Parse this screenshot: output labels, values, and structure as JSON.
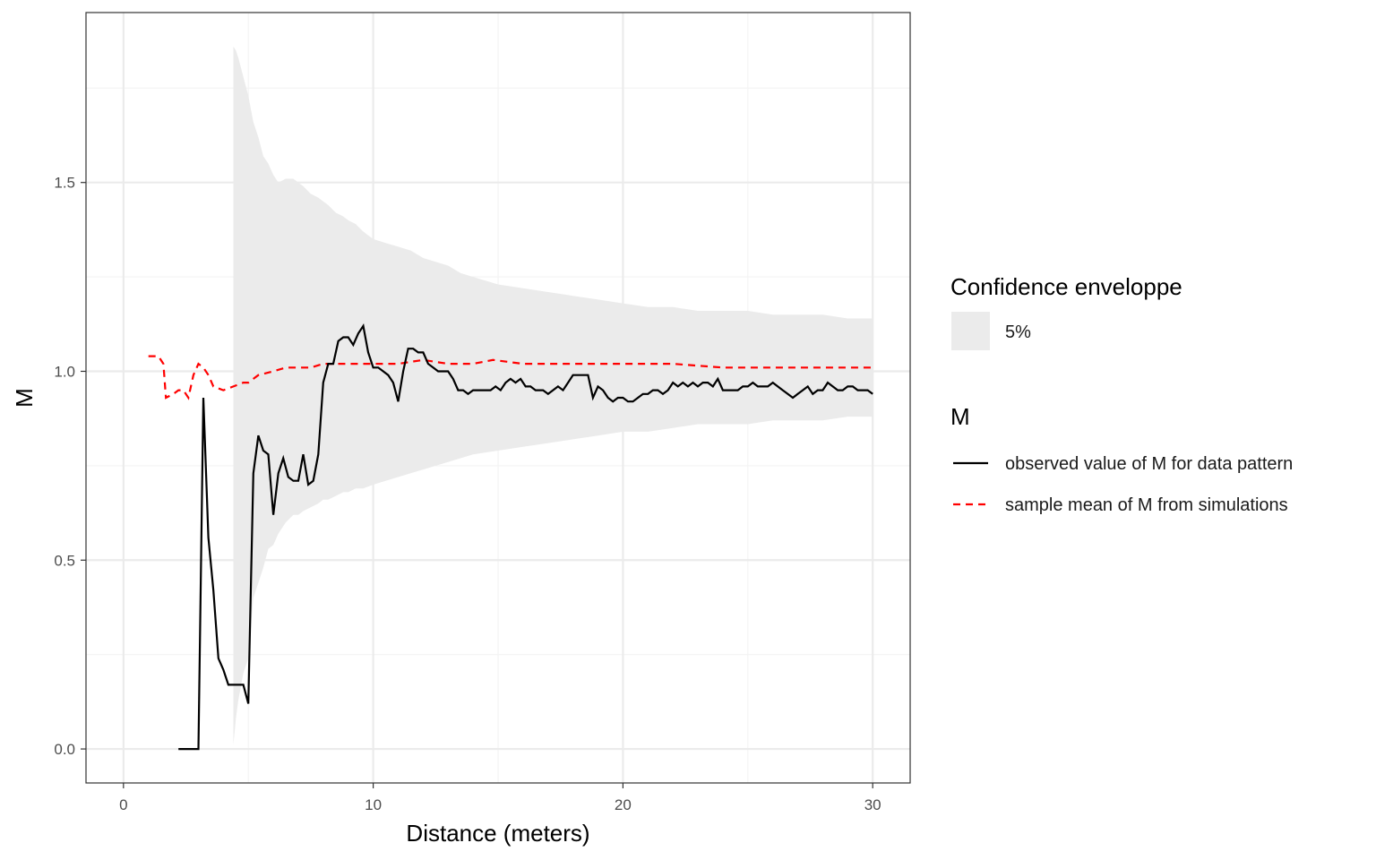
{
  "colors": {
    "envelope_fill": "#ebebeb",
    "observed_line": "#000000",
    "mean_line": "#ff0000",
    "grid_major": "#ebebeb",
    "grid_minor": "#f3f3f3",
    "panel_border": "#333333"
  },
  "legend": {
    "envelope_title": "Confidence enveloppe",
    "envelope_label": "5%",
    "m_title": "M",
    "observed_label": "observed value of M for data pattern",
    "mean_label": "sample mean of M from simulations"
  },
  "chart_data": {
    "type": "line",
    "xlabel": "Distance (meters)",
    "ylabel": "M",
    "xlim": [
      -1.5,
      31.5
    ],
    "ylim": [
      -0.09,
      1.95
    ],
    "x_ticks": [
      0,
      10,
      20,
      30
    ],
    "x_tick_labels": [
      "0",
      "10",
      "20",
      "30"
    ],
    "y_ticks": [
      0.0,
      0.5,
      1.0,
      1.5
    ],
    "y_tick_labels": [
      "0.0",
      "0.5",
      "1.0",
      "1.5"
    ],
    "grid": true,
    "legend_position": "right",
    "series": [
      {
        "name": "observed value of M for data pattern",
        "style": "solid",
        "points": [
          [
            2.2,
            0.0
          ],
          [
            2.4,
            0.0
          ],
          [
            3.0,
            0.0
          ],
          [
            3.2,
            0.93
          ],
          [
            3.4,
            0.56
          ],
          [
            3.6,
            0.42
          ],
          [
            3.8,
            0.24
          ],
          [
            4.0,
            0.21
          ],
          [
            4.2,
            0.17
          ],
          [
            4.5,
            0.17
          ],
          [
            4.8,
            0.17
          ],
          [
            5.0,
            0.12
          ],
          [
            5.2,
            0.73
          ],
          [
            5.4,
            0.83
          ],
          [
            5.6,
            0.79
          ],
          [
            5.8,
            0.78
          ],
          [
            6.0,
            0.62
          ],
          [
            6.2,
            0.73
          ],
          [
            6.4,
            0.77
          ],
          [
            6.6,
            0.72
          ],
          [
            6.8,
            0.71
          ],
          [
            7.0,
            0.71
          ],
          [
            7.2,
            0.78
          ],
          [
            7.4,
            0.7
          ],
          [
            7.6,
            0.71
          ],
          [
            7.8,
            0.78
          ],
          [
            8.0,
            0.97
          ],
          [
            8.2,
            1.02
          ],
          [
            8.4,
            1.02
          ],
          [
            8.6,
            1.08
          ],
          [
            8.8,
            1.09
          ],
          [
            9.0,
            1.09
          ],
          [
            9.2,
            1.07
          ],
          [
            9.4,
            1.1
          ],
          [
            9.6,
            1.12
          ],
          [
            9.8,
            1.05
          ],
          [
            10.0,
            1.01
          ],
          [
            10.2,
            1.01
          ],
          [
            10.4,
            1.0
          ],
          [
            10.6,
            0.99
          ],
          [
            10.8,
            0.97
          ],
          [
            11.0,
            0.92
          ],
          [
            11.2,
            1.0
          ],
          [
            11.4,
            1.06
          ],
          [
            11.6,
            1.06
          ],
          [
            11.8,
            1.05
          ],
          [
            12.0,
            1.05
          ],
          [
            12.2,
            1.02
          ],
          [
            12.4,
            1.01
          ],
          [
            12.6,
            1.0
          ],
          [
            12.8,
            1.0
          ],
          [
            13.0,
            1.0
          ],
          [
            13.2,
            0.98
          ],
          [
            13.4,
            0.95
          ],
          [
            13.6,
            0.95
          ],
          [
            13.8,
            0.94
          ],
          [
            14.0,
            0.95
          ],
          [
            14.4,
            0.95
          ],
          [
            14.7,
            0.95
          ],
          [
            14.9,
            0.96
          ],
          [
            15.1,
            0.95
          ],
          [
            15.3,
            0.97
          ],
          [
            15.5,
            0.98
          ],
          [
            15.7,
            0.97
          ],
          [
            15.9,
            0.98
          ],
          [
            16.1,
            0.96
          ],
          [
            16.3,
            0.96
          ],
          [
            16.5,
            0.95
          ],
          [
            16.8,
            0.95
          ],
          [
            17.0,
            0.94
          ],
          [
            17.2,
            0.95
          ],
          [
            17.4,
            0.96
          ],
          [
            17.6,
            0.95
          ],
          [
            17.8,
            0.97
          ],
          [
            18.0,
            0.99
          ],
          [
            18.2,
            0.99
          ],
          [
            18.4,
            0.99
          ],
          [
            18.6,
            0.99
          ],
          [
            18.8,
            0.93
          ],
          [
            19.0,
            0.96
          ],
          [
            19.2,
            0.95
          ],
          [
            19.4,
            0.93
          ],
          [
            19.6,
            0.92
          ],
          [
            19.8,
            0.93
          ],
          [
            20.0,
            0.93
          ],
          [
            20.2,
            0.92
          ],
          [
            20.4,
            0.92
          ],
          [
            20.6,
            0.93
          ],
          [
            20.8,
            0.94
          ],
          [
            21.0,
            0.94
          ],
          [
            21.2,
            0.95
          ],
          [
            21.4,
            0.95
          ],
          [
            21.6,
            0.94
          ],
          [
            21.8,
            0.95
          ],
          [
            22.0,
            0.97
          ],
          [
            22.2,
            0.96
          ],
          [
            22.4,
            0.97
          ],
          [
            22.6,
            0.96
          ],
          [
            22.8,
            0.97
          ],
          [
            23.0,
            0.96
          ],
          [
            23.2,
            0.97
          ],
          [
            23.4,
            0.97
          ],
          [
            23.6,
            0.96
          ],
          [
            23.8,
            0.98
          ],
          [
            24.0,
            0.95
          ],
          [
            24.2,
            0.95
          ],
          [
            24.4,
            0.95
          ],
          [
            24.6,
            0.95
          ],
          [
            24.8,
            0.96
          ],
          [
            25.0,
            0.96
          ],
          [
            25.2,
            0.97
          ],
          [
            25.4,
            0.96
          ],
          [
            25.6,
            0.96
          ],
          [
            25.8,
            0.96
          ],
          [
            26.0,
            0.97
          ],
          [
            26.2,
            0.96
          ],
          [
            26.4,
            0.95
          ],
          [
            26.6,
            0.94
          ],
          [
            26.8,
            0.93
          ],
          [
            27.0,
            0.94
          ],
          [
            27.2,
            0.95
          ],
          [
            27.4,
            0.96
          ],
          [
            27.6,
            0.94
          ],
          [
            27.8,
            0.95
          ],
          [
            28.0,
            0.95
          ],
          [
            28.2,
            0.97
          ],
          [
            28.4,
            0.96
          ],
          [
            28.6,
            0.95
          ],
          [
            28.8,
            0.95
          ],
          [
            29.0,
            0.96
          ],
          [
            29.2,
            0.96
          ],
          [
            29.4,
            0.95
          ],
          [
            29.6,
            0.95
          ],
          [
            29.8,
            0.95
          ],
          [
            30.0,
            0.94
          ]
        ]
      },
      {
        "name": "sample mean of M from simulations",
        "style": "dashed",
        "points": [
          [
            1.0,
            1.04
          ],
          [
            1.4,
            1.04
          ],
          [
            1.6,
            1.02
          ],
          [
            1.7,
            0.93
          ],
          [
            2.0,
            0.94
          ],
          [
            2.2,
            0.95
          ],
          [
            2.4,
            0.95
          ],
          [
            2.6,
            0.93
          ],
          [
            2.8,
            0.99
          ],
          [
            3.0,
            1.02
          ],
          [
            3.2,
            1.01
          ],
          [
            3.4,
            0.99
          ],
          [
            3.6,
            0.96
          ],
          [
            4.0,
            0.95
          ],
          [
            4.4,
            0.96
          ],
          [
            4.8,
            0.97
          ],
          [
            5.0,
            0.97
          ],
          [
            5.4,
            0.99
          ],
          [
            6.0,
            1.0
          ],
          [
            6.5,
            1.01
          ],
          [
            7.0,
            1.01
          ],
          [
            7.5,
            1.01
          ],
          [
            8.0,
            1.02
          ],
          [
            9.0,
            1.02
          ],
          [
            10.0,
            1.02
          ],
          [
            11.0,
            1.02
          ],
          [
            12.0,
            1.03
          ],
          [
            13.0,
            1.02
          ],
          [
            14.0,
            1.02
          ],
          [
            14.8,
            1.03
          ],
          [
            16.0,
            1.02
          ],
          [
            18.0,
            1.02
          ],
          [
            20.0,
            1.02
          ],
          [
            22.0,
            1.02
          ],
          [
            24.0,
            1.01
          ],
          [
            26.0,
            1.01
          ],
          [
            28.0,
            1.01
          ],
          [
            30.0,
            1.01
          ]
        ]
      }
    ],
    "envelope": {
      "name": "5%",
      "x": [
        4.4,
        4.5,
        4.6,
        4.8,
        5.0,
        5.2,
        5.4,
        5.6,
        5.8,
        6.0,
        6.2,
        6.5,
        6.8,
        7.0,
        7.2,
        7.5,
        7.8,
        8.0,
        8.2,
        8.5,
        8.8,
        9.0,
        9.3,
        9.6,
        10.0,
        10.5,
        11.0,
        11.5,
        12.0,
        12.5,
        13.0,
        13.5,
        14.0,
        15.0,
        16.0,
        17.0,
        18.0,
        19.0,
        20.0,
        21.0,
        22.0,
        23.0,
        24.0,
        25.0,
        26.0,
        27.0,
        28.0,
        29.0,
        30.0
      ],
      "upper": [
        1.86,
        1.85,
        1.83,
        1.78,
        1.73,
        1.66,
        1.62,
        1.57,
        1.55,
        1.52,
        1.5,
        1.51,
        1.51,
        1.5,
        1.49,
        1.47,
        1.46,
        1.45,
        1.44,
        1.42,
        1.41,
        1.4,
        1.39,
        1.37,
        1.35,
        1.34,
        1.33,
        1.32,
        1.3,
        1.29,
        1.28,
        1.26,
        1.25,
        1.23,
        1.22,
        1.21,
        1.2,
        1.19,
        1.18,
        1.17,
        1.17,
        1.16,
        1.16,
        1.16,
        1.15,
        1.15,
        1.15,
        1.14,
        1.14
      ],
      "lower": [
        0.01,
        0.08,
        0.13,
        0.2,
        0.24,
        0.4,
        0.44,
        0.48,
        0.53,
        0.54,
        0.57,
        0.6,
        0.62,
        0.62,
        0.63,
        0.64,
        0.65,
        0.66,
        0.66,
        0.67,
        0.68,
        0.68,
        0.69,
        0.69,
        0.7,
        0.71,
        0.72,
        0.73,
        0.74,
        0.75,
        0.76,
        0.77,
        0.78,
        0.79,
        0.8,
        0.81,
        0.82,
        0.83,
        0.84,
        0.84,
        0.85,
        0.86,
        0.86,
        0.86,
        0.87,
        0.87,
        0.87,
        0.88,
        0.88
      ]
    }
  }
}
